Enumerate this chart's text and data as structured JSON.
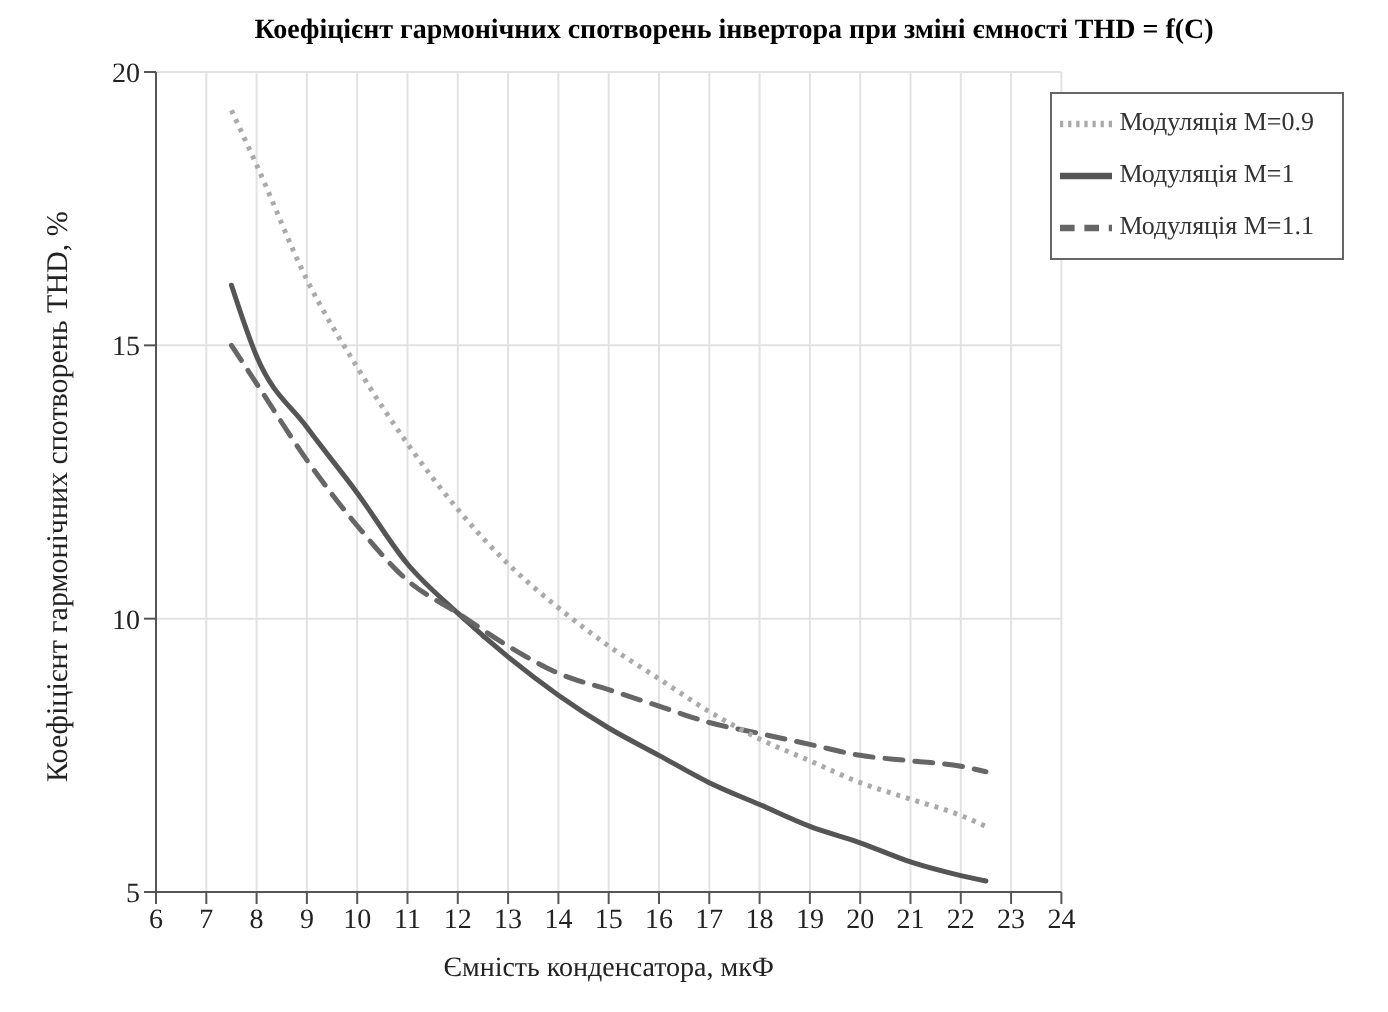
{
  "chart_data": {
    "type": "line",
    "title": "Коефіцієнт гармонічних спотворень інвертора при зміні ємності THD = f(C)",
    "xlabel": "Ємність конденсатора, мкФ",
    "ylabel": "Коефіцієнт гармонічних спотворень THD, %",
    "x": [
      7.5,
      8,
      9,
      10,
      11,
      12,
      13,
      14,
      15,
      16,
      17,
      18,
      19,
      20,
      21,
      22,
      22.5
    ],
    "series": [
      {
        "name": "Модуляція M=1",
        "color": "#555555",
        "line_style": "solid",
        "values": [
          16.1,
          14.8,
          13.5,
          12.3,
          11.0,
          10.1,
          9.3,
          8.6,
          8.0,
          7.5,
          7.0,
          6.6,
          6.2,
          5.9,
          5.55,
          5.3,
          5.2
        ]
      },
      {
        "name": "Модуляція M=1.1",
        "color": "#666666",
        "line_style": "dashed",
        "values": [
          15.0,
          14.3,
          12.9,
          11.7,
          10.7,
          10.1,
          9.5,
          9.0,
          8.7,
          8.4,
          8.1,
          7.9,
          7.7,
          7.5,
          7.4,
          7.3,
          7.2
        ]
      },
      {
        "name": "Модуляція M=0.9",
        "color": "#aaaaaa",
        "line_style": "dotted",
        "values": [
          19.3,
          18.3,
          16.2,
          14.6,
          13.2,
          12.0,
          11.0,
          10.2,
          9.5,
          8.9,
          8.3,
          7.8,
          7.4,
          7.0,
          6.7,
          6.4,
          6.2
        ]
      }
    ],
    "xlim": [
      6,
      24
    ],
    "xticks": [
      6,
      7,
      8,
      9,
      10,
      11,
      12,
      13,
      14,
      15,
      16,
      17,
      18,
      19,
      20,
      21,
      22,
      23,
      24
    ],
    "ylim": [
      5,
      20
    ],
    "yticks": [
      5,
      10,
      15,
      20
    ],
    "grid": true,
    "legend": "top right"
  }
}
